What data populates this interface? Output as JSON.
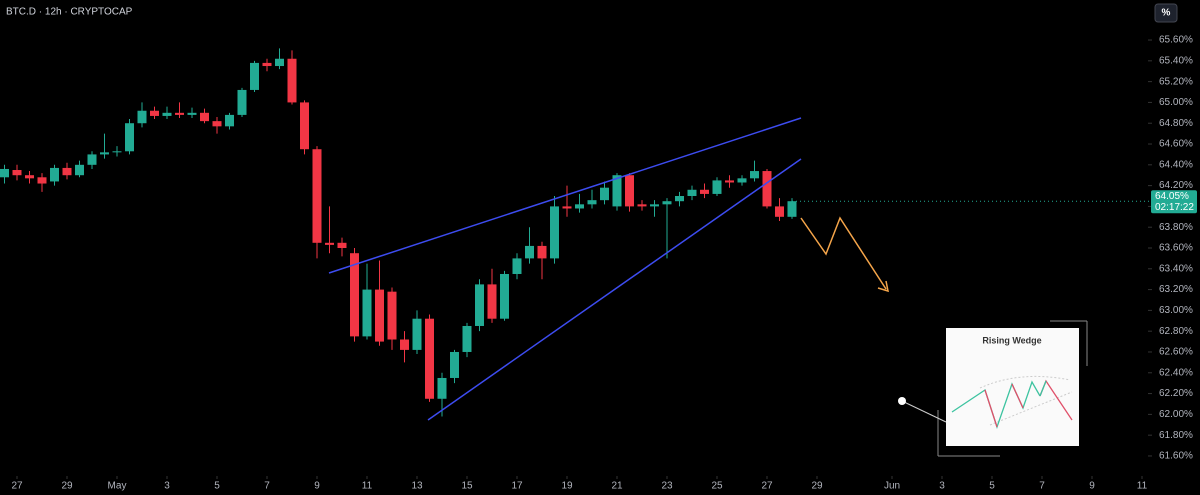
{
  "chart_data": {
    "type": "candlestick",
    "title": "BTC.D · 12h · CRYPTOCAP",
    "scale_button": "%",
    "inset_title": "Rising Wedge",
    "up_color": "#22ab94",
    "down_color": "#f23645",
    "last_price": {
      "value": 64.05,
      "label": "64.05%"
    },
    "countdown": "02:17:22",
    "x": [
      -0.5,
      0,
      0.5,
      1,
      1.5,
      2,
      2.5,
      3,
      3.5,
      4,
      4.5,
      5,
      5.5,
      6,
      6.5,
      7,
      7.5,
      8,
      8.5,
      9,
      9.5,
      10,
      10.5,
      11,
      11.5,
      12,
      12.5,
      13,
      13.5,
      14,
      14.5,
      15,
      15.5,
      16,
      16.5,
      17,
      17.5,
      18,
      18.5,
      19,
      19.5,
      20,
      20.5,
      21,
      21.5,
      22,
      22.5,
      23,
      23.5,
      24,
      24.5,
      25,
      25.5,
      26,
      26.5,
      27,
      27.5,
      28,
      28.5,
      29,
      29.5,
      30,
      30.5,
      31
    ],
    "open": [
      64.28,
      64.35,
      64.3,
      64.28,
      64.24,
      64.37,
      64.3,
      64.4,
      64.5,
      64.52,
      64.53,
      64.8,
      64.92,
      64.87,
      64.9,
      64.88,
      64.9,
      64.82,
      64.77,
      64.88,
      65.12,
      65.38,
      65.35,
      65.42,
      65.0,
      64.55,
      63.65,
      63.65,
      63.55,
      62.75,
      63.2,
      63.18,
      62.72,
      62.62,
      62.92,
      62.15,
      62.35,
      62.6,
      62.85,
      63.25,
      62.92,
      63.35,
      63.5,
      63.62,
      63.5,
      64.0,
      63.98,
      64.02,
      64.06,
      64.0,
      64.3,
      64.02,
      64.0,
      64.02,
      64.05,
      64.1,
      64.16,
      64.12,
      64.25,
      64.23,
      64.27,
      64.34,
      64.0,
      63.9
    ],
    "high": [
      64.4,
      64.4,
      64.34,
      64.32,
      64.4,
      64.42,
      64.44,
      64.53,
      64.7,
      64.58,
      64.84,
      65.0,
      64.96,
      64.96,
      65.0,
      64.95,
      64.94,
      64.86,
      64.9,
      65.14,
      65.4,
      65.42,
      65.52,
      65.5,
      65.02,
      64.58,
      64.0,
      63.7,
      63.6,
      63.45,
      63.48,
      63.22,
      62.8,
      63.0,
      62.96,
      62.4,
      62.62,
      62.88,
      63.3,
      63.4,
      63.38,
      63.55,
      63.8,
      63.66,
      64.1,
      64.2,
      64.12,
      64.16,
      64.24,
      64.32,
      64.32,
      64.06,
      64.06,
      64.08,
      64.14,
      64.2,
      64.22,
      64.28,
      64.3,
      64.3,
      64.44,
      64.36,
      64.08,
      64.08
    ],
    "low": [
      64.22,
      64.25,
      64.22,
      64.14,
      64.2,
      64.26,
      64.28,
      64.36,
      64.46,
      64.48,
      64.5,
      64.76,
      64.84,
      64.84,
      64.85,
      64.85,
      64.8,
      64.7,
      64.74,
      64.86,
      65.1,
      65.3,
      65.32,
      64.98,
      64.5,
      63.5,
      63.55,
      63.52,
      62.7,
      62.72,
      62.66,
      62.62,
      62.5,
      62.58,
      62.12,
      61.98,
      62.3,
      62.55,
      62.8,
      62.88,
      62.9,
      63.3,
      63.45,
      63.3,
      63.45,
      63.9,
      63.94,
      63.98,
      64.02,
      63.96,
      63.95,
      63.96,
      63.9,
      63.5,
      64.0,
      64.06,
      64.08,
      64.1,
      64.18,
      64.2,
      64.24,
      63.98,
      63.86,
      63.88
    ],
    "close": [
      64.36,
      64.3,
      64.27,
      64.22,
      64.37,
      64.3,
      64.4,
      64.5,
      64.52,
      64.53,
      64.8,
      64.92,
      64.87,
      64.9,
      64.88,
      64.9,
      64.82,
      64.77,
      64.88,
      65.12,
      65.38,
      65.35,
      65.42,
      65.0,
      64.55,
      63.65,
      63.63,
      63.6,
      62.75,
      63.2,
      62.7,
      62.72,
      62.62,
      62.92,
      62.15,
      62.35,
      62.6,
      62.85,
      63.25,
      62.92,
      63.35,
      63.5,
      63.62,
      63.5,
      64.0,
      63.98,
      64.02,
      64.06,
      64.18,
      64.3,
      64.0,
      64.0,
      64.02,
      64.05,
      64.1,
      64.16,
      64.12,
      64.25,
      64.23,
      64.27,
      64.34,
      64.0,
      63.9,
      64.05
    ],
    "xlim": [
      -0.68,
      45.12
    ],
    "ylim": [
      61.465,
      65.985
    ],
    "xticks": [
      {
        "value": 0,
        "label": "27"
      },
      {
        "value": 2,
        "label": "29"
      },
      {
        "value": 4,
        "label": "May"
      },
      {
        "value": 6,
        "label": "3"
      },
      {
        "value": 8,
        "label": "5"
      },
      {
        "value": 10,
        "label": "7"
      },
      {
        "value": 12,
        "label": "9"
      },
      {
        "value": 14,
        "label": "11"
      },
      {
        "value": 16,
        "label": "13"
      },
      {
        "value": 18,
        "label": "15"
      },
      {
        "value": 20,
        "label": "17"
      },
      {
        "value": 22,
        "label": "19"
      },
      {
        "value": 24,
        "label": "21"
      },
      {
        "value": 26,
        "label": "23"
      },
      {
        "value": 28,
        "label": "25"
      },
      {
        "value": 30,
        "label": "27"
      },
      {
        "value": 32,
        "label": "29"
      },
      {
        "value": 35,
        "label": "Jun"
      },
      {
        "value": 37,
        "label": "3"
      },
      {
        "value": 39,
        "label": "5"
      },
      {
        "value": 41,
        "label": "7"
      },
      {
        "value": 43,
        "label": "9"
      },
      {
        "value": 45,
        "label": "11"
      }
    ],
    "yticks": [
      {
        "value": 61.6,
        "label": "61.60%"
      },
      {
        "value": 61.8,
        "label": "61.80%"
      },
      {
        "value": 62.0,
        "label": "62.00%"
      },
      {
        "value": 62.2,
        "label": "62.20%"
      },
      {
        "value": 62.4,
        "label": "62.40%"
      },
      {
        "value": 62.6,
        "label": "62.60%"
      },
      {
        "value": 62.8,
        "label": "62.80%"
      },
      {
        "value": 63.0,
        "label": "63.00%"
      },
      {
        "value": 63.2,
        "label": "63.20%"
      },
      {
        "value": 63.4,
        "label": "63.40%"
      },
      {
        "value": 63.6,
        "label": "63.60%"
      },
      {
        "value": 63.8,
        "label": "63.80%"
      },
      {
        "value": 64.0,
        "label": "64.00%"
      },
      {
        "value": 64.2,
        "label": "64.20%"
      },
      {
        "value": 64.4,
        "label": "64.40%"
      },
      {
        "value": 64.6,
        "label": "64.60%"
      },
      {
        "value": 64.8,
        "label": "64.80%"
      },
      {
        "value": 65.0,
        "label": "65.00%"
      },
      {
        "value": 65.2,
        "label": "65.20%"
      },
      {
        "value": 65.4,
        "label": "65.40%"
      },
      {
        "value": 65.6,
        "label": "65.60%"
      }
    ]
  }
}
